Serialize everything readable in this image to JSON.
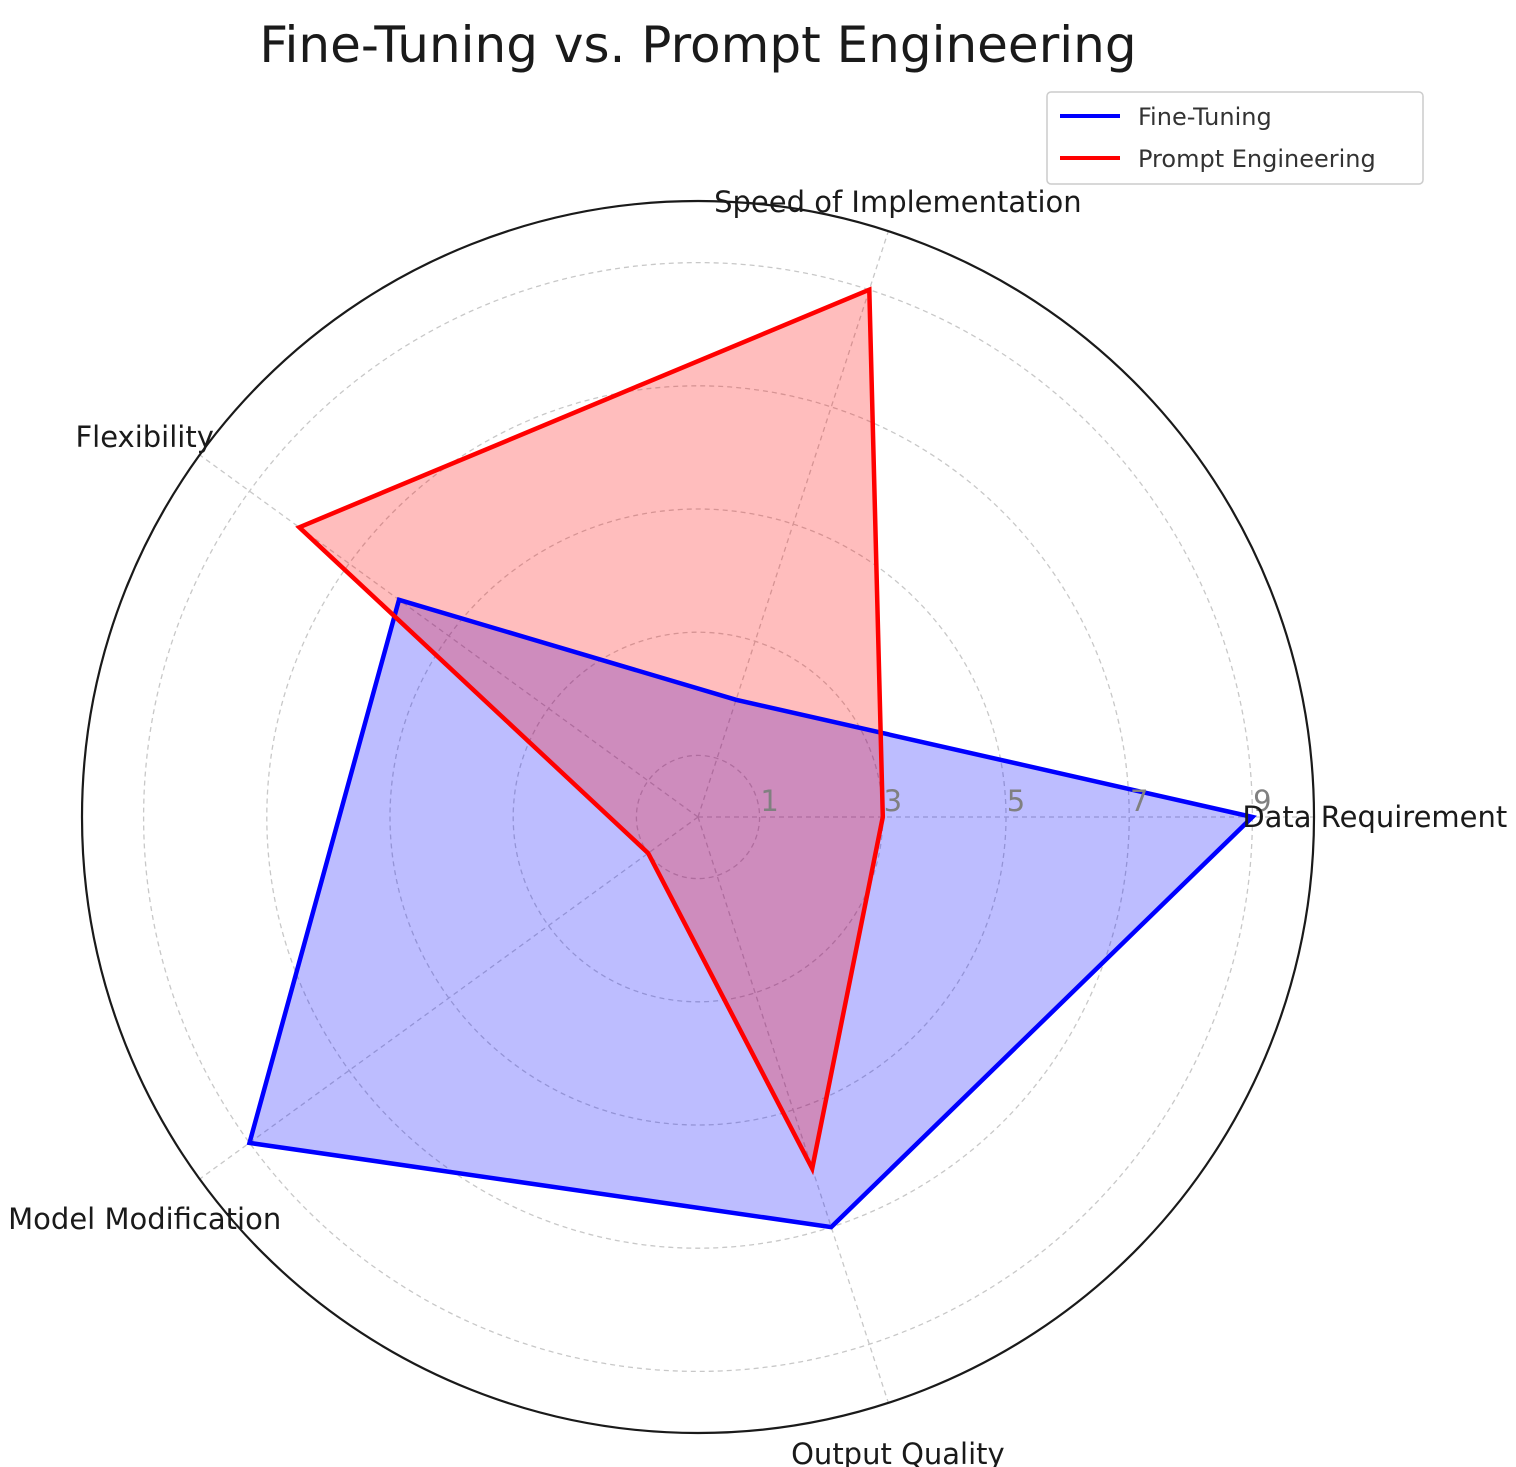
{
  "chart_data": {
    "type": "radar",
    "title": "Fine-Tuning vs. Prompt Engineering",
    "categories": [
      "Data Requirement",
      "Speed of Implementation",
      "Flexibility",
      "Model Modification",
      "Output Quality"
    ],
    "radial_ticks": [
      "1",
      "3",
      "5",
      "7",
      "9"
    ],
    "radial_tick_values": [
      1,
      3,
      5,
      7,
      9
    ],
    "rlim": [
      0,
      10
    ],
    "grid": true,
    "legend_position": "top-right",
    "series": [
      {
        "name": "Fine-Tuning",
        "values": [
          9,
          2,
          6,
          9,
          7
        ],
        "color": "#0000ff",
        "fill": "#0000ff"
      },
      {
        "name": "Prompt Engineering",
        "values": [
          3,
          9,
          8,
          1,
          6
        ],
        "color": "#ff0000",
        "fill": "#ff0000"
      }
    ]
  }
}
